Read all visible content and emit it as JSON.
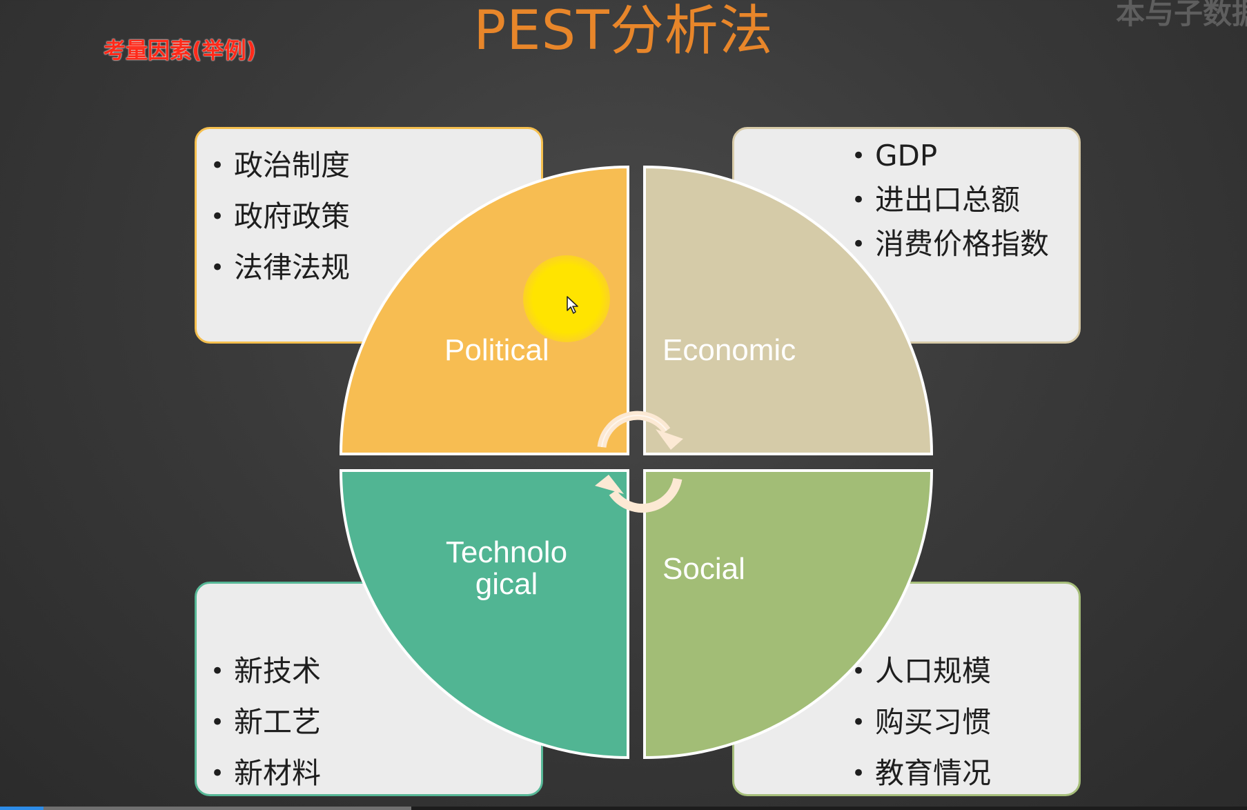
{
  "slide": {
    "title": "PEST分析法",
    "subtitle": "考量因素(举例)",
    "watermark": "本与子数据"
  },
  "quadrants": [
    {
      "label": "Political",
      "color": "#f7bd52",
      "items": [
        "政治制度",
        "政府政策",
        "法律法规"
      ]
    },
    {
      "label": "Economic",
      "color": "#d5cba8",
      "items": [
        "GDP",
        "进出口总额",
        "消费价格指数"
      ]
    },
    {
      "label": "Technological",
      "color": "#51b593",
      "items": [
        "新技术",
        "新工艺",
        "新材料"
      ]
    },
    {
      "label": "Social",
      "color": "#a2bd76",
      "items": [
        "人口规模",
        "购买习惯",
        "教育情况"
      ]
    }
  ],
  "cycle_arrow_color": "#fce9d4",
  "player": {
    "progress_fraction": 0.035,
    "buffered_fraction": 0.33
  }
}
